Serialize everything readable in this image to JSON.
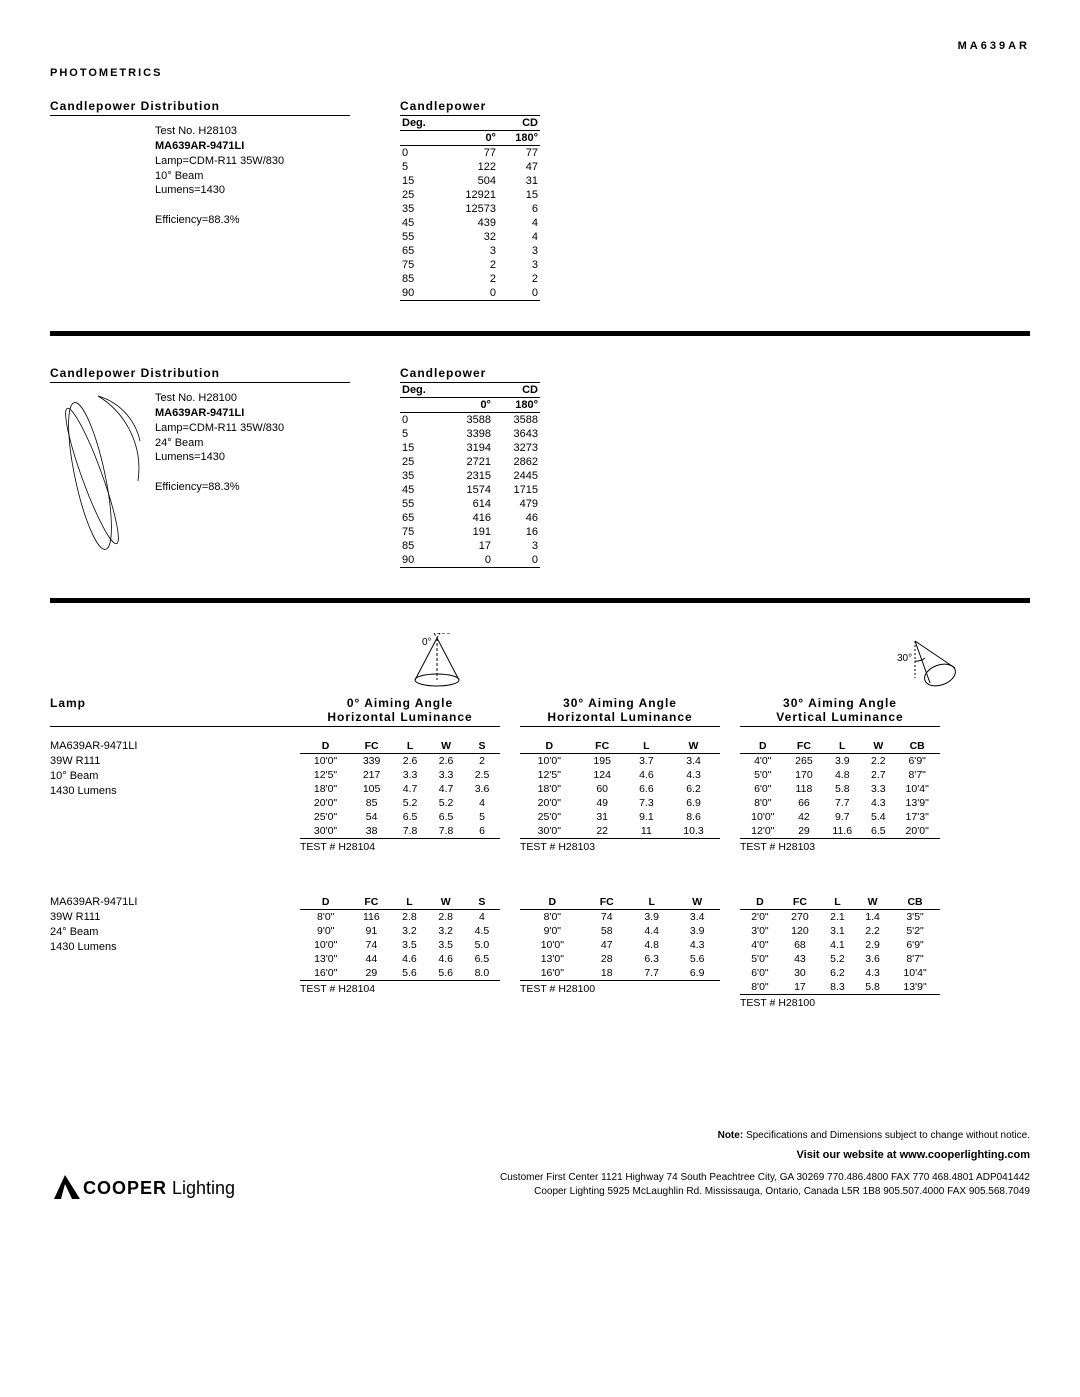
{
  "header": {
    "product_code": "MA639AR",
    "photometrics": "PHOTOMETRICS"
  },
  "sections": [
    {
      "dist_title": "Candlepower Distribution",
      "info": {
        "test": "Test No. H28103",
        "model": "MA639AR-9471LI",
        "lamp": "Lamp=CDM-R11 35W/830",
        "beam": "10° Beam",
        "lumens": "Lumens=1430",
        "eff": "Efficiency=88.3%"
      },
      "cp_title": "Candlepower",
      "cp_header": {
        "deg": "Deg.",
        "cd": "CD",
        "a0": "0°",
        "a180": "180°"
      },
      "cp_rows": [
        [
          "0",
          "77",
          "77"
        ],
        [
          "5",
          "122",
          "47"
        ],
        [
          "15",
          "504",
          "31"
        ],
        [
          "25",
          "12921",
          "15"
        ],
        [
          "35",
          "12573",
          "6"
        ],
        [
          "45",
          "439",
          "4"
        ],
        [
          "55",
          "32",
          "4"
        ],
        [
          "65",
          "3",
          "3"
        ],
        [
          "75",
          "2",
          "3"
        ],
        [
          "85",
          "2",
          "2"
        ],
        [
          "90",
          "0",
          "0"
        ]
      ]
    },
    {
      "dist_title": "Candlepower Distribution",
      "info": {
        "test": "Test No. H28100",
        "model": "MA639AR-9471LI",
        "lamp": "Lamp=CDM-R11 35W/830",
        "beam": "24° Beam",
        "lumens": "Lumens=1430",
        "eff": "Efficiency=88.3%"
      },
      "cp_title": "Candlepower",
      "cp_header": {
        "deg": "Deg.",
        "cd": "CD",
        "a0": "0°",
        "a180": "180°"
      },
      "cp_rows": [
        [
          "0",
          "3588",
          "3588"
        ],
        [
          "5",
          "3398",
          "3643"
        ],
        [
          "15",
          "3194",
          "3273"
        ],
        [
          "25",
          "2721",
          "2862"
        ],
        [
          "35",
          "2315",
          "2445"
        ],
        [
          "45",
          "1574",
          "1715"
        ],
        [
          "55",
          "614",
          "479"
        ],
        [
          "65",
          "416",
          "46"
        ],
        [
          "75",
          "191",
          "16"
        ],
        [
          "85",
          "17",
          "3"
        ],
        [
          "90",
          "0",
          "0"
        ]
      ]
    }
  ],
  "lum": {
    "lamp_title": "Lamp",
    "angles": [
      {
        "title1": "0° Aiming Angle",
        "title2": "Horizontal Luminance"
      },
      {
        "title1": "30° Aiming Angle",
        "title2": "Horizontal Luminance"
      },
      {
        "title1": "30° Aiming Angle",
        "title2": "Vertical Luminance"
      }
    ],
    "lamps": [
      {
        "info": [
          "MA639AR-9471LI",
          "39W R111",
          "10° Beam",
          "1430 Lumens"
        ],
        "tables": [
          {
            "cols": [
              "D",
              "FC",
              "L",
              "W",
              "S"
            ],
            "rows": [
              [
                "10'0\"",
                "339",
                "2.6",
                "2.6",
                "2"
              ],
              [
                "12'5\"",
                "217",
                "3.3",
                "3.3",
                "2.5"
              ],
              [
                "18'0\"",
                "105",
                "4.7",
                "4.7",
                "3.6"
              ],
              [
                "20'0\"",
                "85",
                "5.2",
                "5.2",
                "4"
              ],
              [
                "25'0\"",
                "54",
                "6.5",
                "6.5",
                "5"
              ],
              [
                "30'0\"",
                "38",
                "7.8",
                "7.8",
                "6"
              ]
            ],
            "test": "TEST # H28104"
          },
          {
            "cols": [
              "D",
              "FC",
              "L",
              "W"
            ],
            "rows": [
              [
                "10'0\"",
                "195",
                "3.7",
                "3.4"
              ],
              [
                "12'5\"",
                "124",
                "4.6",
                "4.3"
              ],
              [
                "18'0\"",
                "60",
                "6.6",
                "6.2"
              ],
              [
                "20'0\"",
                "49",
                "7.3",
                "6.9"
              ],
              [
                "25'0\"",
                "31",
                "9.1",
                "8.6"
              ],
              [
                "30'0\"",
                "22",
                "11",
                "10.3"
              ]
            ],
            "test": "TEST # H28103"
          },
          {
            "cols": [
              "D",
              "FC",
              "L",
              "W",
              "CB"
            ],
            "rows": [
              [
                "4'0\"",
                "265",
                "3.9",
                "2.2",
                "6'9\""
              ],
              [
                "5'0\"",
                "170",
                "4.8",
                "2.7",
                "8'7\""
              ],
              [
                "6'0\"",
                "118",
                "5.8",
                "3.3",
                "10'4\""
              ],
              [
                "8'0\"",
                "66",
                "7.7",
                "4.3",
                "13'9\""
              ],
              [
                "10'0\"",
                "42",
                "9.7",
                "5.4",
                "17'3\""
              ],
              [
                "12'0\"",
                "29",
                "11.6",
                "6.5",
                "20'0\""
              ]
            ],
            "test": "TEST # H28103"
          }
        ]
      },
      {
        "info": [
          "MA639AR-9471LI",
          "39W R111",
          "24° Beam",
          "1430 Lumens"
        ],
        "tables": [
          {
            "cols": [
              "D",
              "FC",
              "L",
              "W",
              "S"
            ],
            "rows": [
              [
                "8'0\"",
                "116",
                "2.8",
                "2.8",
                "4"
              ],
              [
                "9'0\"",
                "91",
                "3.2",
                "3.2",
                "4.5"
              ],
              [
                "10'0\"",
                "74",
                "3.5",
                "3.5",
                "5.0"
              ],
              [
                "13'0\"",
                "44",
                "4.6",
                "4.6",
                "6.5"
              ],
              [
                "16'0\"",
                "29",
                "5.6",
                "5.6",
                "8.0"
              ]
            ],
            "test": "TEST # H28104"
          },
          {
            "cols": [
              "D",
              "FC",
              "L",
              "W"
            ],
            "rows": [
              [
                "8'0\"",
                "74",
                "3.9",
                "3.4"
              ],
              [
                "9'0\"",
                "58",
                "4.4",
                "3.9"
              ],
              [
                "10'0\"",
                "47",
                "4.8",
                "4.3"
              ],
              [
                "13'0\"",
                "28",
                "6.3",
                "5.6"
              ],
              [
                "16'0\"",
                "18",
                "7.7",
                "6.9"
              ]
            ],
            "test": "TEST # H28100"
          },
          {
            "cols": [
              "D",
              "FC",
              "L",
              "W",
              "CB"
            ],
            "rows": [
              [
                "2'0\"",
                "270",
                "2.1",
                "1.4",
                "3'5\""
              ],
              [
                "3'0\"",
                "120",
                "3.1",
                "2.2",
                "5'2\""
              ],
              [
                "4'0\"",
                "68",
                "4.1",
                "2.9",
                "6'9\""
              ],
              [
                "5'0\"",
                "43",
                "5.2",
                "3.6",
                "8'7\""
              ],
              [
                "6'0\"",
                "30",
                "6.2",
                "4.3",
                "10'4\""
              ],
              [
                "8'0\"",
                "17",
                "8.3",
                "5.8",
                "13'9\""
              ]
            ],
            "test": "TEST # H28100"
          }
        ]
      }
    ]
  },
  "footer": {
    "note_label": "Note:",
    "note": "Specifications and Dimensions subject to change without notice.",
    "visit": "Visit our website at www.cooperlighting.com",
    "addr1": "Customer First Center  1121 Highway 74 South Peachtree City, GA 30269 770.486.4800 FAX 770 468.4801 ADP041442",
    "addr2": "Cooper Lighting 5925 McLaughlin Rd. Mississauga, Ontario, Canada L5R 1B8 905.507.4000 FAX 905.568.7049",
    "logo_cooper": "COOPER",
    "logo_lighting": " Lighting"
  },
  "angle_labels": {
    "a0": "0°",
    "a30": "30°"
  }
}
